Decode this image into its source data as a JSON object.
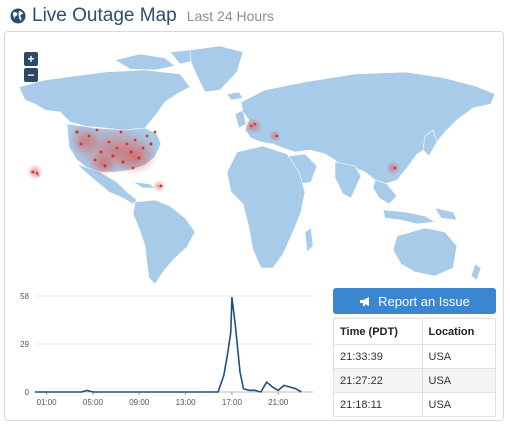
{
  "header": {
    "title": "Live Outage Map",
    "subtitle": "Last 24 Hours",
    "icon": "globe-icon"
  },
  "map": {
    "zoom_in_label": "+",
    "zoom_out_label": "−",
    "land_color": "#a7cbe9",
    "hotspot_color": "#e4473b"
  },
  "report_button": {
    "label": "Report an Issue",
    "icon": "megaphone-icon",
    "color": "#3a86d1"
  },
  "recent_table": {
    "headers": [
      "Time (PDT)",
      "Location"
    ],
    "rows": [
      [
        "21:33:39",
        "USA"
      ],
      [
        "21:27:22",
        "USA"
      ],
      [
        "21:18:11",
        "USA"
      ]
    ]
  },
  "chart_data": {
    "type": "line",
    "x_tick_labels": [
      "01:00",
      "05:00",
      "09:00",
      "13:00",
      "17:00",
      "21:00"
    ],
    "y_tick_labels": [
      "0",
      "29",
      "58"
    ],
    "ylim": [
      0,
      58
    ],
    "xlim": [
      0,
      24
    ],
    "line_color": "#1e4f8a",
    "grid": "horizontal",
    "series": [
      {
        "x": [
          0,
          1,
          2,
          3,
          4,
          4.5,
          5,
          6,
          7,
          8,
          9,
          10,
          11,
          12,
          13,
          14,
          15,
          15.8,
          16,
          16.3,
          16.6,
          16.9,
          17,
          17.3,
          17.7,
          18,
          18.5,
          19,
          19.5,
          20,
          20.5,
          21,
          21.5,
          22,
          22.5,
          23
        ],
        "values": [
          0,
          0,
          0,
          0,
          0,
          1,
          0,
          0,
          0,
          0,
          0,
          0,
          0,
          0,
          0,
          0,
          0,
          0,
          4,
          10,
          22,
          36,
          57,
          40,
          12,
          2,
          1,
          1,
          0,
          6,
          3,
          1,
          4,
          3,
          2,
          0
        ]
      }
    ]
  }
}
